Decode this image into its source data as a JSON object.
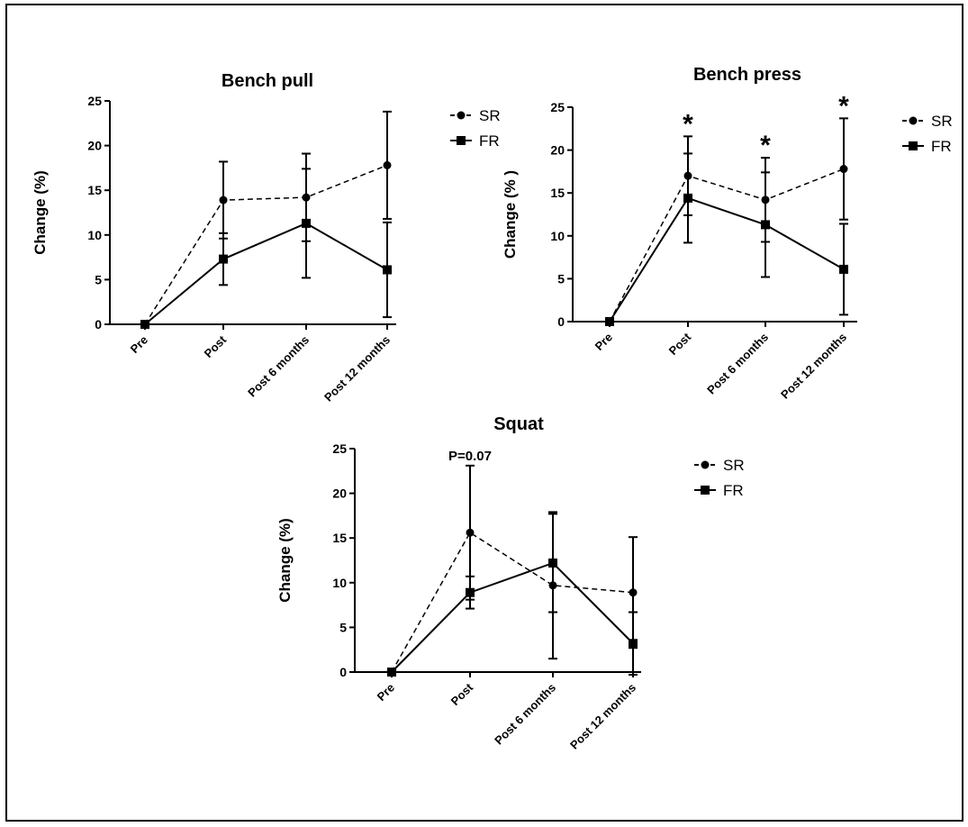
{
  "chart_data": [
    {
      "type": "line",
      "title": "Bench pull",
      "xlabel": "",
      "ylabel": "Change (%)",
      "ylim": [
        0,
        25
      ],
      "yticks": [
        0,
        5,
        10,
        15,
        20,
        25
      ],
      "categories": [
        "Pre",
        "Post",
        "Post 6 months",
        "Post 12 months"
      ],
      "series": [
        {
          "name": "SR",
          "marker": "circle",
          "line": "dashed",
          "values": [
            0,
            13.9,
            14.2,
            17.8
          ],
          "error": [
            0,
            4.3,
            4.9,
            6.0
          ]
        },
        {
          "name": "FR",
          "marker": "square",
          "line": "solid",
          "values": [
            0,
            7.3,
            11.3,
            6.1
          ],
          "error": [
            0,
            2.9,
            6.1,
            5.3
          ]
        }
      ],
      "annotations": [],
      "legend": "right"
    },
    {
      "type": "line",
      "title": "Bench press",
      "xlabel": "",
      "ylabel": "Change (% )",
      "ylim": [
        0,
        25
      ],
      "yticks": [
        0,
        5,
        10,
        15,
        20,
        25
      ],
      "categories": [
        "Pre",
        "Post",
        "Post 6 months",
        "Post 12 months"
      ],
      "series": [
        {
          "name": "SR",
          "marker": "circle",
          "line": "dashed",
          "values": [
            0,
            17.0,
            14.2,
            17.8
          ],
          "error": [
            0,
            4.6,
            4.9,
            5.9
          ]
        },
        {
          "name": "FR",
          "marker": "square",
          "line": "solid",
          "values": [
            0,
            14.4,
            11.3,
            6.1
          ],
          "error": [
            0,
            5.2,
            6.1,
            5.3
          ]
        }
      ],
      "annotations": [
        {
          "category": "Post",
          "text": "*"
        },
        {
          "category": "Post 6 months",
          "text": "*"
        },
        {
          "category": "Post 12 months",
          "text": "*"
        }
      ],
      "legend": "right"
    },
    {
      "type": "line",
      "title": "Squat",
      "xlabel": "",
      "ylabel": "Change (%)",
      "ylim": [
        0,
        25
      ],
      "yticks": [
        0,
        5,
        10,
        15,
        20,
        25
      ],
      "categories": [
        "Pre",
        "Post",
        "Post 6 months",
        "Post 12 months"
      ],
      "series": [
        {
          "name": "SR",
          "marker": "circle",
          "line": "dashed",
          "values": [
            0,
            15.6,
            9.7,
            8.9
          ],
          "error": [
            0,
            7.5,
            8.2,
            6.2
          ]
        },
        {
          "name": "FR",
          "marker": "square",
          "line": "solid",
          "values": [
            0,
            8.9,
            12.2,
            3.2
          ],
          "error": [
            0,
            1.8,
            5.5,
            3.5
          ]
        }
      ],
      "annotations": [
        {
          "category": "Post",
          "text": "P=0.07"
        }
      ],
      "legend": "right"
    }
  ]
}
